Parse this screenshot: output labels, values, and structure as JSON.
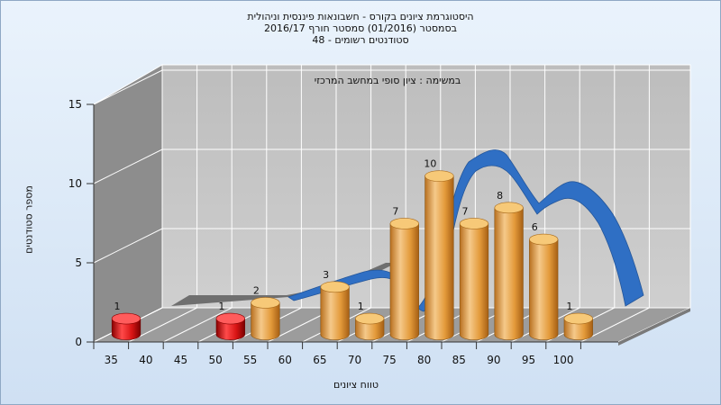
{
  "header": {
    "line1": "היסטוגרמת ציונים בקורס - חשבונאות פיננסית וניהולית",
    "line2": "בסמסטר   (01/2016)   סמסטר חורף  2016/17",
    "line3": "סטודנטים רשומים - 48"
  },
  "chart_data": {
    "type": "bar",
    "title": "במשימה : ציון סופי במחשב המרכזי",
    "xlabel": "טווח ציונים",
    "ylabel": "מספר סטודנטים",
    "ylim": [
      0,
      15
    ],
    "yticks": [
      0,
      5,
      10,
      15
    ],
    "categories": [
      "35",
      "40",
      "45",
      "50",
      "55",
      "60",
      "65",
      "70",
      "75",
      "80",
      "85",
      "90",
      "95",
      "100"
    ],
    "values": [
      1,
      0,
      0,
      1,
      2,
      0,
      3,
      1,
      7,
      10,
      7,
      8,
      6,
      1
    ],
    "grid": true,
    "colors": {
      "fail": "#d81414",
      "pass": "#e8a23c",
      "curve": "#2f6fc4"
    }
  }
}
